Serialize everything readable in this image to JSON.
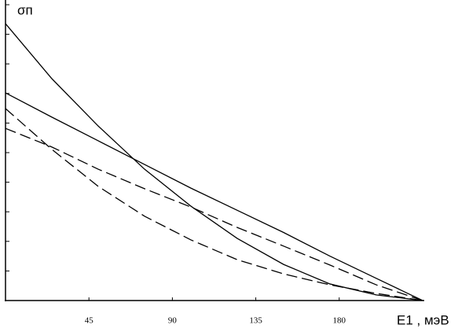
{
  "chart_data": {
    "type": "line",
    "y_label": "σп",
    "x_label": "E1 , мэВ",
    "x": [
      0,
      25,
      50,
      75,
      100,
      125,
      150,
      175,
      200,
      225
    ],
    "xlim": [
      0,
      225
    ],
    "xticks": [
      45,
      90,
      135,
      180
    ],
    "ylim": [
      0,
      10
    ],
    "yticks": [
      0,
      1,
      2,
      3,
      4,
      5,
      6,
      7,
      8,
      9,
      10
    ],
    "series": [
      {
        "color": "#000000",
        "dashed": false,
        "values": [
          9.36,
          7.5,
          5.9,
          4.44,
          3.19,
          2.1,
          1.22,
          0.56,
          0.19,
          0
        ]
      },
      {
        "color": "#000000",
        "dashed": false,
        "values": [
          7.02,
          6.2,
          5.4,
          4.6,
          3.8,
          3.05,
          2.3,
          1.5,
          0.75,
          0
        ]
      },
      {
        "color": "#000000",
        "dashed": true,
        "values": [
          5.82,
          5.19,
          4.44,
          3.78,
          3.16,
          2.47,
          1.84,
          1.2,
          0.53,
          0
        ]
      },
      {
        "color": "#000000",
        "dashed": true,
        "values": [
          6.49,
          5.11,
          3.86,
          2.85,
          2.05,
          1.38,
          0.9,
          0.53,
          0.24,
          0
        ]
      }
    ]
  }
}
